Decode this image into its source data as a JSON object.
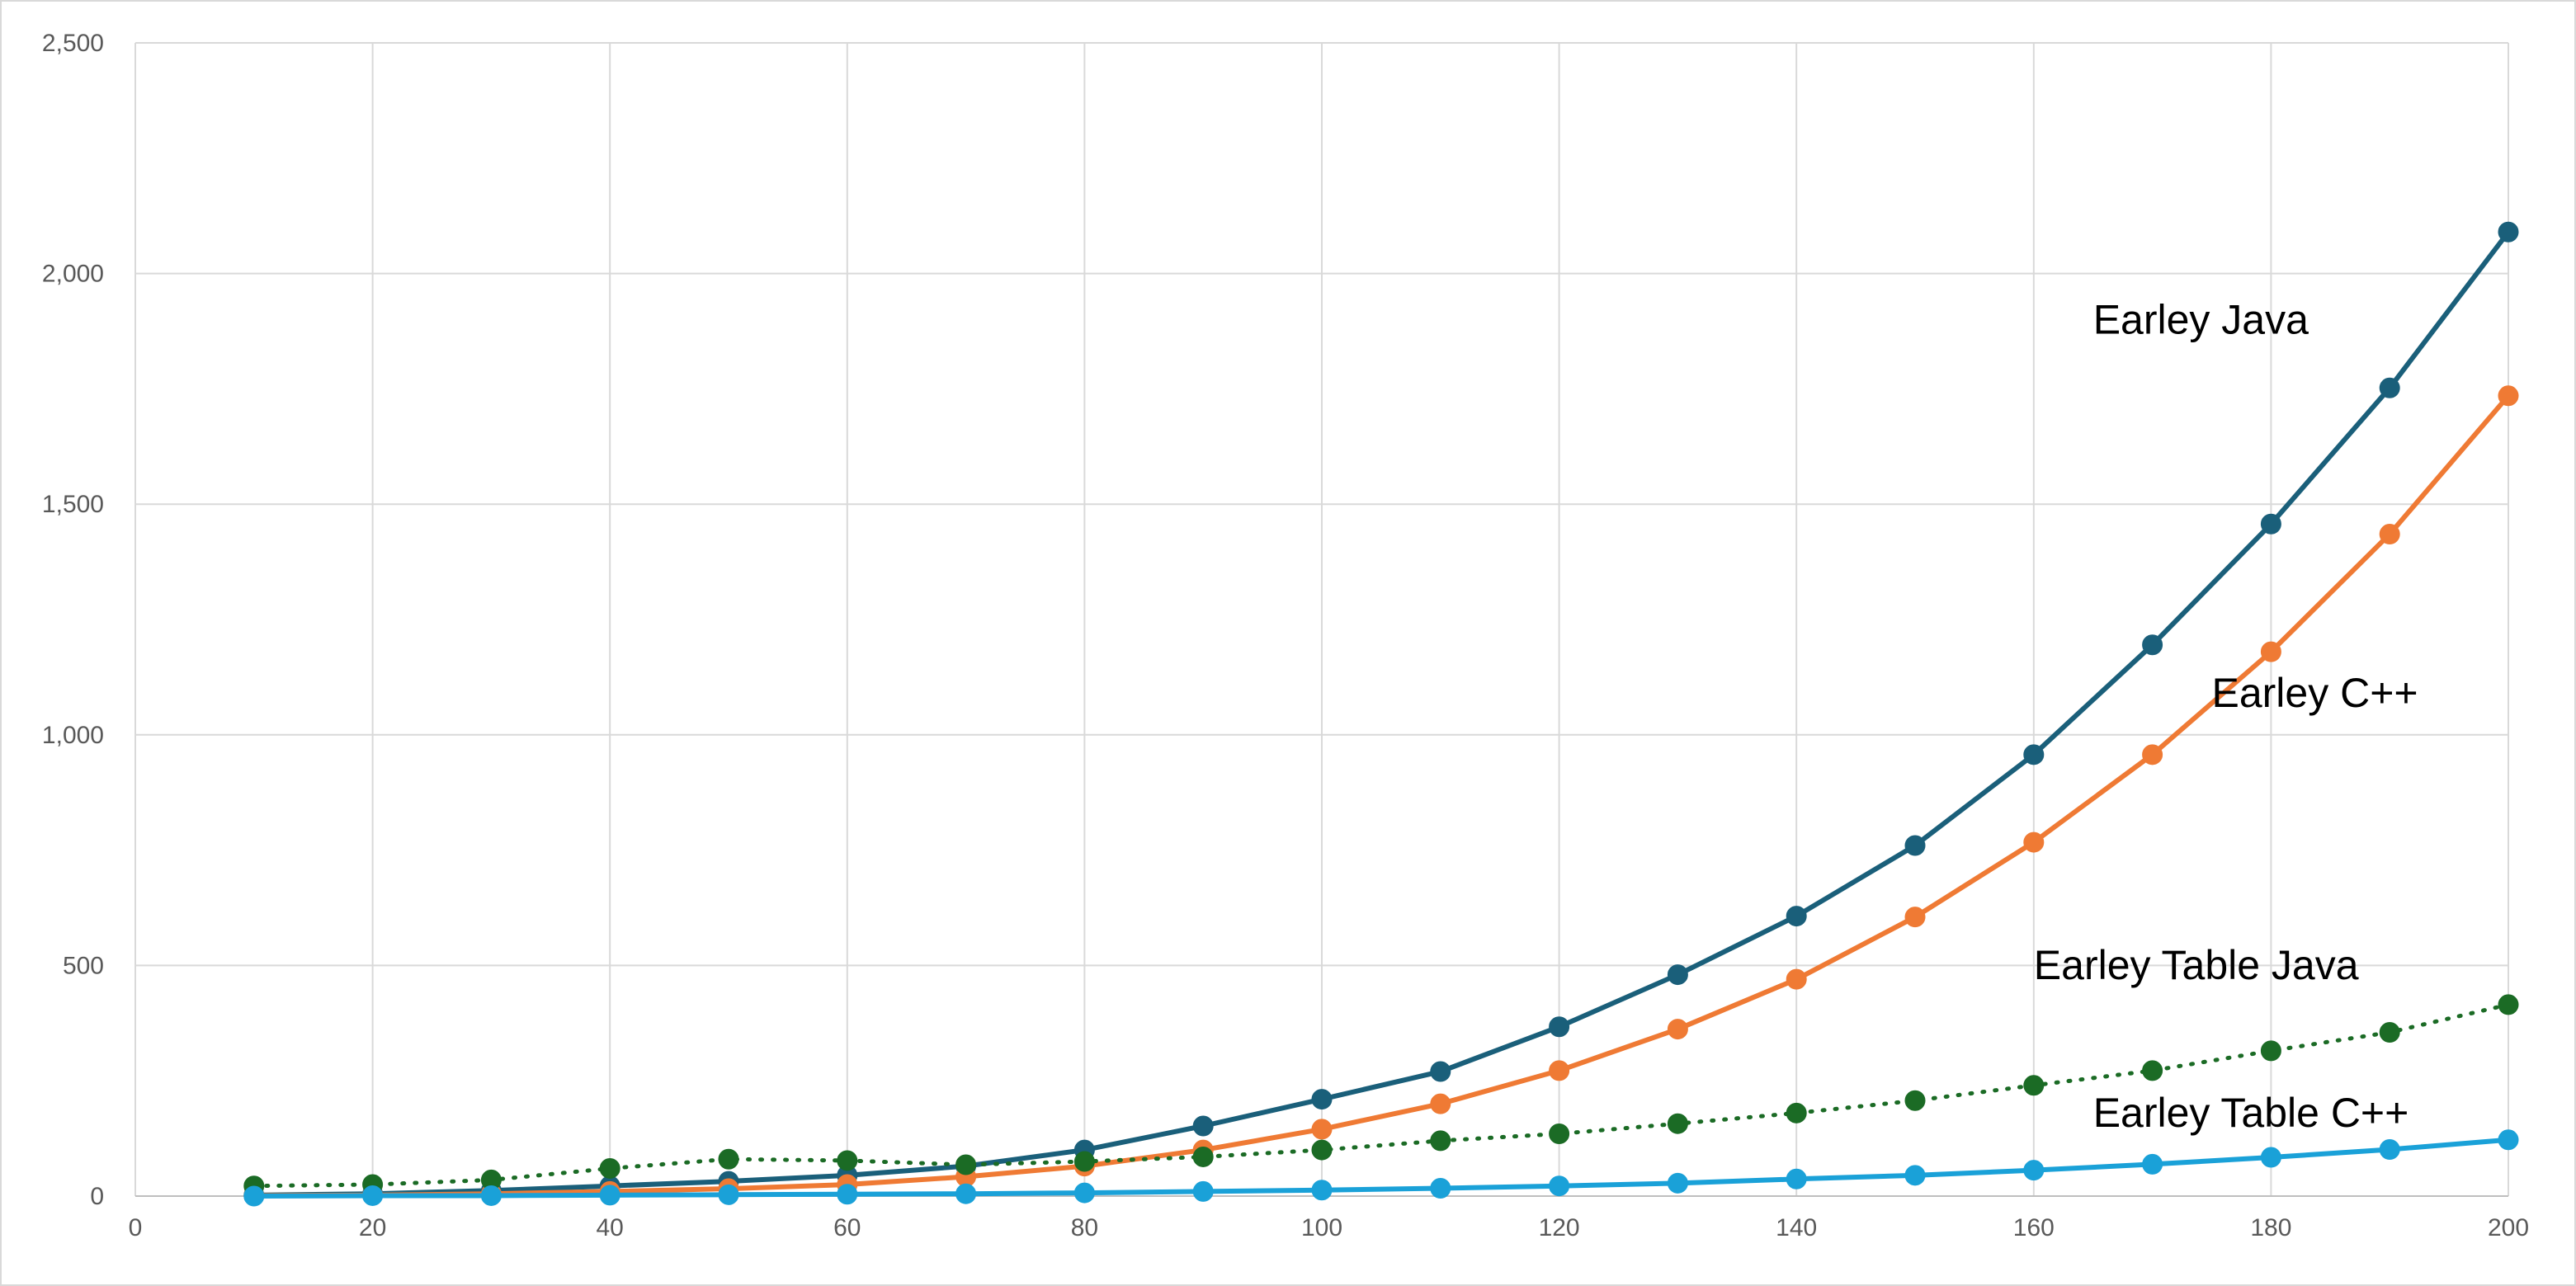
{
  "chart_data": {
    "type": "line",
    "title": "",
    "xlabel": "",
    "ylabel": "",
    "x": [
      10,
      20,
      30,
      40,
      50,
      60,
      70,
      80,
      90,
      100,
      110,
      120,
      130,
      140,
      150,
      160,
      170,
      180,
      190,
      200
    ],
    "xlim": [
      0,
      200
    ],
    "ylim": [
      0,
      2500
    ],
    "x_ticks": [
      0,
      20,
      40,
      60,
      80,
      100,
      120,
      140,
      160,
      180,
      200
    ],
    "x_tick_labels": [
      "0",
      "20",
      "40",
      "60",
      "80",
      "100",
      "120",
      "140",
      "160",
      "180",
      "200"
    ],
    "y_ticks": [
      0,
      500,
      1000,
      1500,
      2000,
      2500
    ],
    "y_tick_labels": [
      "0",
      "500",
      "1,000",
      "1,500",
      "2,000",
      "2,500"
    ],
    "grid": true,
    "legend": "inline labels near series ends",
    "series": [
      {
        "name": "Earley Java",
        "color": "#1a5f7a",
        "line_style": "solid",
        "label_position": {
          "x": 165,
          "y": 1870
        },
        "values": [
          2,
          5,
          12,
          22,
          32,
          45,
          65,
          100,
          152,
          210,
          270,
          367,
          480,
          607,
          760,
          957,
          1195,
          1457,
          1752,
          2090
        ]
      },
      {
        "name": "Earley C++",
        "color": "#ef7a34",
        "line_style": "solid",
        "label_position": {
          "x": 175,
          "y": 1060
        },
        "values": [
          1,
          2,
          5,
          10,
          16,
          25,
          42,
          65,
          100,
          145,
          200,
          272,
          362,
          470,
          605,
          767,
          957,
          1180,
          1435,
          1735
        ]
      },
      {
        "name": "Earley Table Java",
        "color": "#1b6b25",
        "line_style": "dotted",
        "label_position": {
          "x": 160,
          "y": 470
        },
        "values": [
          22,
          25,
          35,
          60,
          80,
          77,
          68,
          75,
          85,
          100,
          120,
          135,
          157,
          180,
          207,
          240,
          272,
          315,
          355,
          415
        ]
      },
      {
        "name": "Earley Table C++",
        "color": "#1aa1d8",
        "line_style": "solid",
        "label_position": {
          "x": 165,
          "y": 150
        },
        "values": [
          0,
          1,
          1,
          2,
          3,
          4,
          5,
          7,
          10,
          13,
          17,
          22,
          28,
          37,
          45,
          56,
          69,
          84,
          101,
          122
        ]
      }
    ]
  }
}
